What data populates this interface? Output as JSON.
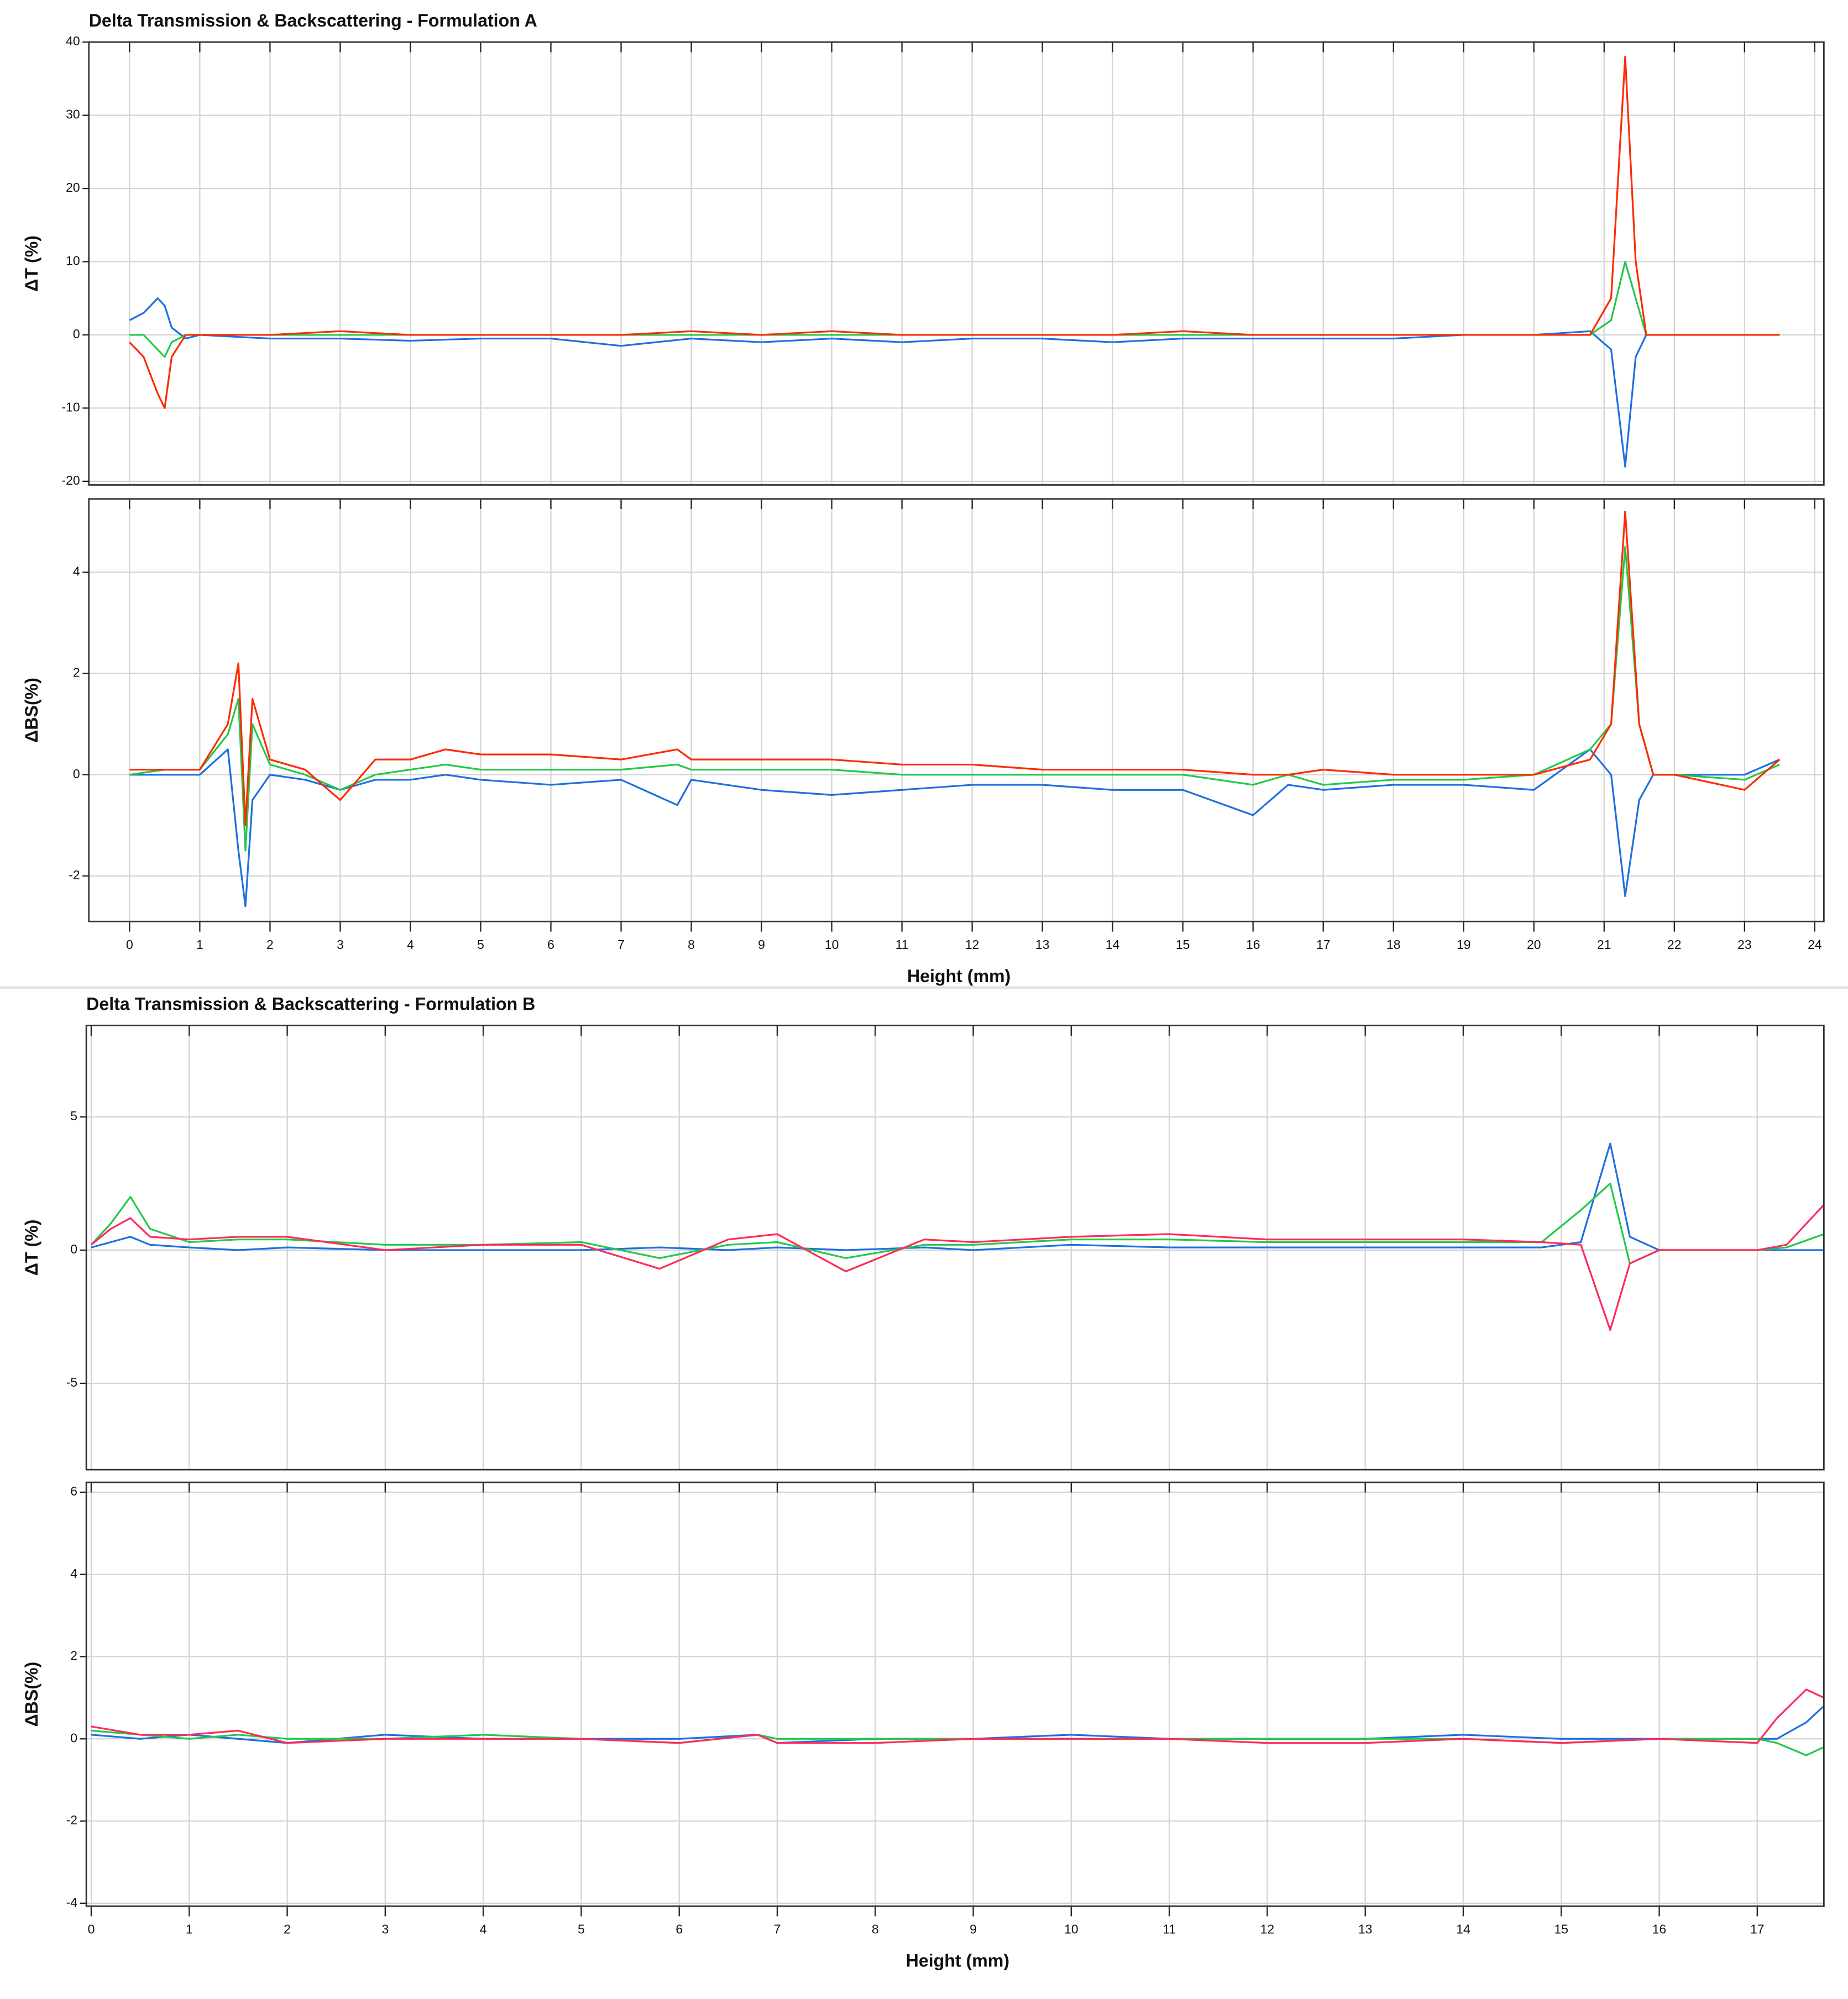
{
  "chart_data": [
    {
      "type": "line",
      "title": "Delta Transmission & Backscattering - Formulation A",
      "y_label": "ΔT (%)",
      "x": [
        0,
        0.2,
        0.4,
        0.5,
        0.6,
        0.8,
        1,
        2,
        3,
        4,
        5,
        6,
        7,
        8,
        9,
        10,
        11,
        12,
        13,
        14,
        15,
        16,
        17,
        18,
        19,
        20,
        20.8,
        21.1,
        21.3,
        21.45,
        21.6,
        21.8,
        22,
        23,
        23.5
      ],
      "series": [
        {
          "color": "#1e6fe0",
          "values": [
            2,
            3,
            5,
            4,
            1,
            -0.5,
            0,
            -0.5,
            -0.5,
            -0.8,
            -0.5,
            -0.5,
            -1.5,
            -0.5,
            -1,
            -0.5,
            -1,
            -0.5,
            -0.5,
            -1,
            -0.5,
            -0.5,
            -0.5,
            -0.5,
            0,
            0,
            0.5,
            -2,
            -18,
            -3,
            0,
            0,
            0,
            0,
            0
          ]
        },
        {
          "color": "#22c94a",
          "values": [
            0,
            0,
            -2,
            -3,
            -1,
            0,
            0,
            0,
            0,
            0,
            0,
            0,
            0,
            0,
            0,
            0,
            0,
            0,
            0,
            0,
            0,
            0,
            0,
            0,
            0,
            0,
            0,
            2,
            10,
            5,
            0,
            0,
            0,
            0,
            0
          ]
        },
        {
          "color": "#ff2a00",
          "values": [
            -1,
            -3,
            -8,
            -10,
            -3,
            0,
            0,
            0,
            0.5,
            0,
            0,
            0,
            0,
            0.5,
            0,
            0.5,
            0,
            0,
            0,
            0,
            0.5,
            0,
            0,
            0,
            0,
            0,
            0,
            5,
            38,
            10,
            0,
            0,
            0,
            0,
            0
          ]
        }
      ],
      "xlim": [
        -0.58,
        24.13
      ],
      "xticks": [
        0,
        1,
        2,
        3,
        4,
        5,
        6,
        7,
        8,
        9,
        10,
        11,
        12,
        13,
        14,
        15,
        16,
        17,
        18,
        19,
        20,
        21,
        22,
        23,
        24
      ],
      "ylim": [
        -20.5,
        40
      ],
      "yticks": [
        -20,
        -10,
        0,
        10,
        20,
        30,
        40
      ],
      "grid": true
    },
    {
      "type": "line",
      "y_label": "ΔBS(%)",
      "x_label": "Height (mm)",
      "x": [
        0,
        0.5,
        1,
        1.4,
        1.55,
        1.65,
        1.75,
        2,
        2.5,
        3,
        3.5,
        4,
        4.5,
        5,
        6,
        7,
        7.8,
        8,
        9,
        10,
        11,
        12,
        13,
        14,
        15,
        16,
        16.5,
        17,
        18,
        19,
        20,
        20.8,
        21.1,
        21.3,
        21.5,
        21.7,
        22,
        23,
        23.5
      ],
      "series": [
        {
          "color": "#1e6fe0",
          "values": [
            0,
            0,
            0,
            0.5,
            -1.5,
            -2.6,
            -0.5,
            0,
            -0.1,
            -0.3,
            -0.1,
            -0.1,
            0,
            -0.1,
            -0.2,
            -0.1,
            -0.6,
            -0.1,
            -0.3,
            -0.4,
            -0.3,
            -0.2,
            -0.2,
            -0.3,
            -0.3,
            -0.8,
            -0.2,
            -0.3,
            -0.2,
            -0.2,
            -0.3,
            0.5,
            0,
            -2.4,
            -0.5,
            0,
            0,
            0,
            0.3
          ]
        },
        {
          "color": "#22c94a",
          "values": [
            0,
            0.1,
            0.1,
            0.8,
            1.5,
            -1.5,
            1,
            0.2,
            0,
            -0.3,
            0,
            0.1,
            0.2,
            0.1,
            0.1,
            0.1,
            0.2,
            0.1,
            0.1,
            0.1,
            0,
            0,
            0,
            0,
            0,
            -0.2,
            0,
            -0.2,
            -0.1,
            -0.1,
            0,
            0.5,
            1,
            4.5,
            1,
            0,
            0,
            -0.1,
            0.2
          ]
        },
        {
          "color": "#ff2a00",
          "values": [
            0.1,
            0.1,
            0.1,
            1,
            2.2,
            -1,
            1.5,
            0.3,
            0.1,
            -0.5,
            0.3,
            0.3,
            0.5,
            0.4,
            0.4,
            0.3,
            0.5,
            0.3,
            0.3,
            0.3,
            0.2,
            0.2,
            0.1,
            0.1,
            0.1,
            0,
            0,
            0.1,
            0,
            0,
            0,
            0.3,
            1,
            5.2,
            1,
            0,
            0,
            -0.3,
            0.3
          ]
        }
      ],
      "xlim": [
        -0.58,
        24.13
      ],
      "xticks": [
        0,
        1,
        2,
        3,
        4,
        5,
        6,
        7,
        8,
        9,
        10,
        11,
        12,
        13,
        14,
        15,
        16,
        17,
        18,
        19,
        20,
        21,
        22,
        23,
        24
      ],
      "ylim": [
        -2.9,
        5.45
      ],
      "yticks": [
        -2,
        0,
        2,
        4
      ],
      "grid": true
    },
    {
      "type": "line",
      "title": "Delta Transmission & Backscattering - Formulation B",
      "y_label": "ΔT (%)",
      "x": [
        0,
        0.2,
        0.4,
        0.6,
        1,
        1.5,
        2,
        3,
        4,
        5,
        5.8,
        6.5,
        7,
        7.7,
        8.5,
        9,
        10,
        11,
        12,
        13,
        14,
        14.8,
        15.2,
        15.5,
        15.7,
        16,
        17,
        17.3,
        17.68
      ],
      "series": [
        {
          "color": "#1e6fe0",
          "values": [
            0.1,
            0.3,
            0.5,
            0.2,
            0.1,
            0,
            0.1,
            0,
            0,
            0,
            0.1,
            0,
            0.1,
            0,
            0.1,
            0,
            0.2,
            0.1,
            0.1,
            0.1,
            0.1,
            0.1,
            0.3,
            4,
            0.5,
            0,
            0,
            0,
            0
          ]
        },
        {
          "color": "#22c94a",
          "values": [
            0.2,
            1,
            2,
            0.8,
            0.3,
            0.4,
            0.4,
            0.2,
            0.2,
            0.3,
            -0.3,
            0.2,
            0.3,
            -0.3,
            0.2,
            0.2,
            0.4,
            0.4,
            0.3,
            0.3,
            0.3,
            0.3,
            1.5,
            2.5,
            -0.5,
            0,
            0,
            0.1,
            0.6
          ]
        },
        {
          "color": "#ff2a5a",
          "values": [
            0.2,
            0.8,
            1.2,
            0.5,
            0.4,
            0.5,
            0.5,
            0,
            0.2,
            0.2,
            -0.7,
            0.4,
            0.6,
            -0.8,
            0.4,
            0.3,
            0.5,
            0.6,
            0.4,
            0.4,
            0.4,
            0.3,
            0.2,
            -3,
            -0.5,
            0,
            0,
            0.2,
            1.7
          ]
        }
      ],
      "xlim": [
        -0.05,
        17.68
      ],
      "xticks": [
        0,
        1,
        2,
        3,
        4,
        5,
        6,
        7,
        8,
        9,
        10,
        11,
        12,
        13,
        14,
        15,
        16,
        17
      ],
      "ylim": [
        -8.24,
        8.43
      ],
      "yticks": [
        -5,
        0,
        5
      ],
      "grid": true
    },
    {
      "type": "line",
      "y_label": "ΔBS(%)",
      "x_label": "Height (mm)",
      "x": [
        0,
        0.5,
        1,
        1.5,
        2,
        3,
        4,
        5,
        6,
        6.8,
        7,
        8,
        9,
        10,
        11,
        12,
        13,
        14,
        15,
        16,
        17,
        17.2,
        17.5,
        17.68
      ],
      "series": [
        {
          "color": "#1e6fe0",
          "values": [
            0.1,
            0,
            0.1,
            0,
            -0.1,
            0.1,
            0,
            0,
            0,
            0.1,
            -0.1,
            0,
            0,
            0.1,
            0,
            0,
            0,
            0.1,
            0,
            0,
            0,
            0,
            0.4,
            0.8
          ]
        },
        {
          "color": "#22c94a",
          "values": [
            0.2,
            0.1,
            0,
            0.1,
            0,
            0,
            0.1,
            0,
            -0.1,
            0.1,
            0,
            0,
            0,
            0,
            0,
            0,
            0,
            0,
            -0.1,
            0,
            0,
            -0.1,
            -0.4,
            -0.2
          ]
        },
        {
          "color": "#ff2a5a",
          "values": [
            0.3,
            0.1,
            0.1,
            0.2,
            -0.1,
            0,
            0,
            0,
            -0.1,
            0.1,
            -0.1,
            -0.1,
            0,
            0,
            0,
            -0.1,
            -0.1,
            0,
            -0.1,
            0,
            -0.1,
            0.5,
            1.2,
            1
          ]
        }
      ],
      "xlim": [
        -0.05,
        17.68
      ],
      "xticks": [
        0,
        1,
        2,
        3,
        4,
        5,
        6,
        7,
        8,
        9,
        10,
        11,
        12,
        13,
        14,
        15,
        16,
        17
      ],
      "ylim": [
        -4.07,
        6.24
      ],
      "yticks": [
        -4,
        -2,
        0,
        2,
        4,
        6
      ],
      "grid": true
    }
  ]
}
